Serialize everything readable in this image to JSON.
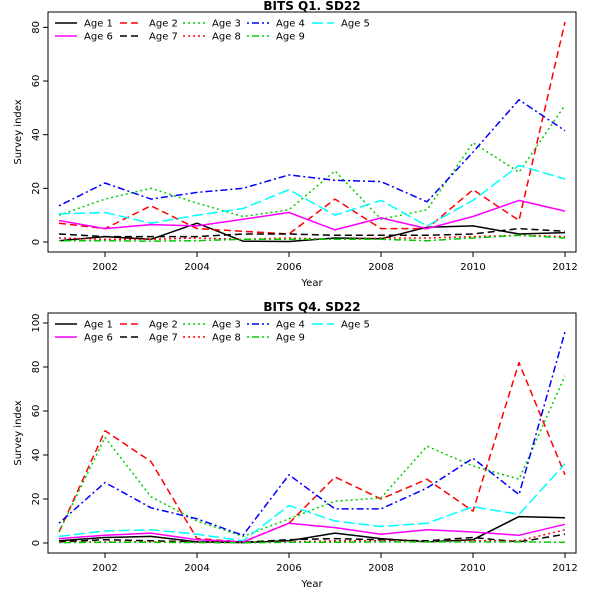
{
  "chart_data": [
    {
      "type": "line",
      "title": "BITS Q1. SD22",
      "xlabel": "Year",
      "ylabel": "Survey index",
      "xlim": [
        2001,
        2012
      ],
      "ylim": [
        0,
        82
      ],
      "xticks": [
        2002,
        2004,
        2006,
        2008,
        2010,
        2012
      ],
      "yticks": [
        0,
        20,
        40,
        60,
        80
      ],
      "grid": false,
      "legend_position": "top-left",
      "x": [
        2001,
        2002,
        2003,
        2004,
        2005,
        2006,
        2007,
        2008,
        2009,
        2010,
        2011,
        2012
      ],
      "series": [
        {
          "name": "Age 1",
          "color": "#000000",
          "dash": "solid",
          "values": [
            0.5,
            2,
            1,
            7,
            0.3,
            0.2,
            1.5,
            1.2,
            5.5,
            6,
            3,
            3.5
          ]
        },
        {
          "name": "Age 2",
          "color": "#ff0000",
          "dash": "dashed",
          "values": [
            7,
            5,
            13.5,
            5,
            4,
            3,
            16,
            5,
            5,
            19.5,
            8,
            82
          ]
        },
        {
          "name": "Age 3",
          "color": "#00cd00",
          "dash": "dotted",
          "values": [
            10,
            16,
            20,
            14.5,
            9.5,
            12,
            26.5,
            8.5,
            12,
            37,
            26,
            51
          ]
        },
        {
          "name": "Age 4",
          "color": "#0000ff",
          "dash": "dotdash",
          "values": [
            13.5,
            22,
            16,
            18.5,
            20,
            25,
            23,
            22.5,
            15,
            33.5,
            53,
            41.5
          ]
        },
        {
          "name": "Age 5",
          "color": "#00ffff",
          "dash": "longdash",
          "values": [
            10.5,
            11,
            7,
            10,
            12.5,
            19.5,
            10,
            15.5,
            6,
            15.5,
            28.5,
            23.5
          ]
        },
        {
          "name": "Age 6",
          "color": "#ff00ff",
          "dash": "solid",
          "values": [
            8,
            5,
            6.5,
            6,
            8.5,
            11,
            4.5,
            9,
            5,
            9.5,
            15.5,
            11.5
          ]
        },
        {
          "name": "Age 7",
          "color": "#000000",
          "dash": "dashed",
          "values": [
            3,
            2,
            2,
            2,
            3,
            3,
            2.5,
            2.5,
            2.5,
            3,
            5,
            4
          ]
        },
        {
          "name": "Age 8",
          "color": "#ff0000",
          "dash": "dotted",
          "values": [
            1.5,
            1,
            1,
            1.5,
            1,
            1.5,
            1,
            1.5,
            1.5,
            2,
            2.5,
            2
          ]
        },
        {
          "name": "Age 9",
          "color": "#00cd00",
          "dash": "dotdash",
          "values": [
            0.5,
            0.5,
            0.3,
            0.5,
            1,
            1,
            1,
            1,
            0.5,
            1.5,
            2.5,
            1.5
          ]
        }
      ]
    },
    {
      "type": "line",
      "title": "BITS Q4. SD22",
      "xlabel": "Year",
      "ylabel": "Survey index",
      "xlim": [
        2001,
        2012
      ],
      "ylim": [
        0,
        100
      ],
      "xticks": [
        2002,
        2004,
        2006,
        2008,
        2010,
        2012
      ],
      "yticks": [
        0,
        20,
        40,
        60,
        80,
        100
      ],
      "grid": false,
      "legend_position": "top-left",
      "x": [
        2001,
        2002,
        2003,
        2004,
        2005,
        2006,
        2007,
        2008,
        2009,
        2010,
        2011,
        2012
      ],
      "series": [
        {
          "name": "Age 1",
          "color": "#000000",
          "dash": "solid",
          "values": [
            1,
            2.5,
            3,
            0.5,
            0.2,
            1,
            4.5,
            2,
            0.5,
            1.5,
            12,
            11.5
          ]
        },
        {
          "name": "Age 2",
          "color": "#ff0000",
          "dash": "dashed",
          "values": [
            5,
            51,
            37,
            2,
            0.5,
            9,
            30,
            20,
            29,
            14.5,
            82,
            31
          ]
        },
        {
          "name": "Age 3",
          "color": "#00cd00",
          "dash": "dotted",
          "values": [
            5,
            48,
            21,
            10,
            3,
            11,
            19,
            20.5,
            44,
            35,
            29,
            76
          ]
        },
        {
          "name": "Age 4",
          "color": "#0000ff",
          "dash": "dotdash",
          "values": [
            9,
            27.5,
            16,
            11,
            3.5,
            31,
            15.5,
            15.5,
            25,
            38.5,
            22,
            96
          ]
        },
        {
          "name": "Age 5",
          "color": "#00ffff",
          "dash": "longdash",
          "values": [
            3,
            5.5,
            6,
            4,
            1,
            17,
            10,
            7.5,
            9,
            16.5,
            13,
            36
          ]
        },
        {
          "name": "Age 6",
          "color": "#ff00ff",
          "dash": "solid",
          "values": [
            2,
            3.5,
            4.5,
            1.5,
            0.5,
            9,
            7,
            4,
            6,
            5,
            3.5,
            8.5
          ]
        },
        {
          "name": "Age 7",
          "color": "#000000",
          "dash": "dashed",
          "values": [
            0.5,
            1.5,
            1,
            0.5,
            0.3,
            1.5,
            2,
            1.5,
            1,
            2.5,
            0.5,
            4
          ]
        },
        {
          "name": "Age 8",
          "color": "#ff0000",
          "dash": "dotted",
          "values": [
            0.3,
            0.5,
            0.5,
            0.3,
            0.2,
            0.5,
            1,
            1,
            0.5,
            1,
            1,
            6
          ]
        },
        {
          "name": "Age 9",
          "color": "#00cd00",
          "dash": "dotdash",
          "values": [
            0.2,
            0.3,
            0.3,
            0.2,
            0.1,
            0.3,
            0.3,
            0.5,
            0.5,
            0.5,
            0.5,
            0.3
          ]
        }
      ]
    }
  ]
}
